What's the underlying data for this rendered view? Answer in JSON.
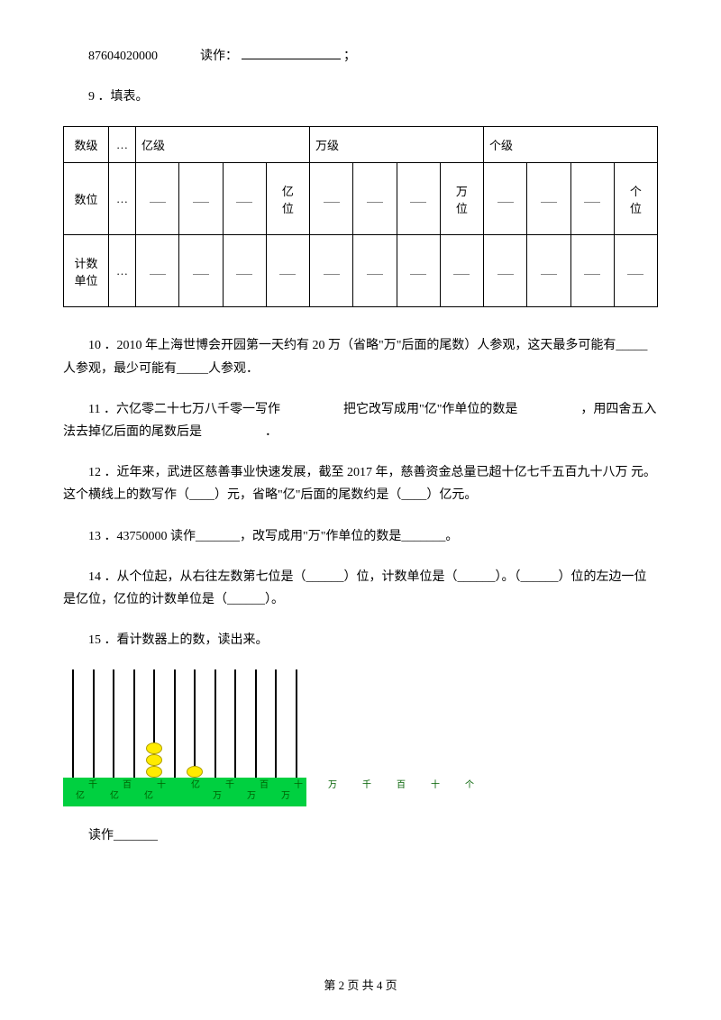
{
  "q8_reading": {
    "number": "87604020000",
    "label": "读作：",
    "suffix": "；"
  },
  "q9": {
    "label": "9 ．填表。"
  },
  "table": {
    "row1": {
      "c0": "数级",
      "c1": "…",
      "c2": "亿级",
      "c3": "万级",
      "c4": "个级"
    },
    "row2": {
      "c0": "数位",
      "c1": "…",
      "yi": "亿\n位",
      "wan": "万\n位",
      "ge": "个\n位"
    },
    "row3": {
      "c0": "计数\n单位",
      "c1": "…"
    }
  },
  "q10": "10 ．2010 年上海世博会开园第一天约有 20 万（省略\"万\"后面的尾数）人参观，这天最多可能有_____人参观，最少可能有_____人参观．",
  "q11": "11 ．六亿零二十七万八千零一写作　　　　　把它改写成用\"亿\"作单位的数是　　　　　，用四舍五入法去掉亿后面的尾数后是　　　　　．",
  "q12": "12 ．近年来，武进区慈善事业快速发展，截至 2017 年，慈善资金总量已超十亿七千五百九十八万 元。这个横线上的数写作（____）元，省略\"亿\"后面的尾数约是（____）亿元。",
  "q13": "13 ．43750000 读作_______，改写成用\"万\"作单位的数是_______。",
  "q14": "14 ．从个位起，从右往左数第七位是（______）位，计数单位是（______）。（______）位的左边一位是亿位，亿位的计数单位是（______）。",
  "q15": "15 ．看计数器上的数，读出来。",
  "q15_answer": "读作_______",
  "abacus": {
    "labels": [
      "千亿",
      "百亿",
      "十亿",
      "亿",
      "千万",
      "百万",
      "十万",
      "万",
      "千",
      "百",
      "十",
      "个"
    ],
    "rods": 12,
    "beads": [
      {
        "rod": 4,
        "count": 3
      },
      {
        "rod": 6,
        "count": 1
      }
    ],
    "base_color": "#00d040",
    "bead_color": "#ffeb00"
  },
  "footer": "第 2 页 共 4 页"
}
